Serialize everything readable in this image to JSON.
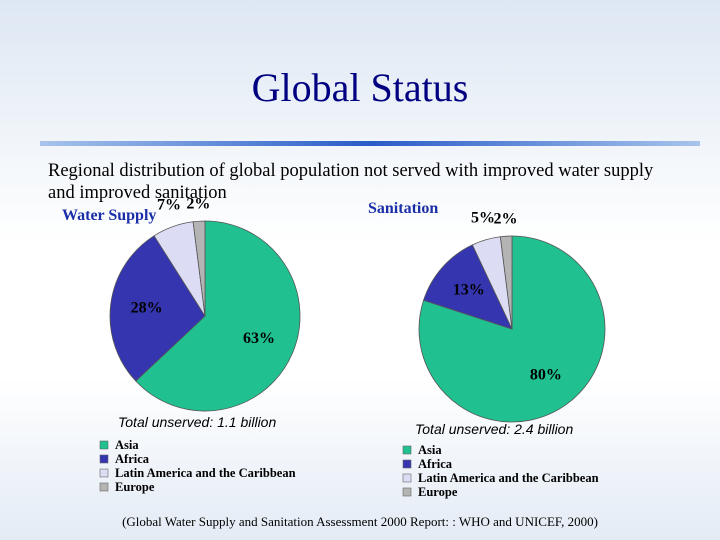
{
  "title": "Global Status",
  "subtitle": "Regional distribution of global population not served with improved water supply and improved sanitation",
  "source": "(Global Water Supply and Sanitation Assessment 2000 Report: : WHO and UNICEF, 2000)",
  "chart_data": [
    {
      "type": "pie",
      "title": "Water Supply",
      "note": "Total unserved: 1.1 billion",
      "categories": [
        "Asia",
        "Africa",
        "Latin America and the Caribbean",
        "Europe"
      ],
      "values": [
        63,
        28,
        7,
        2
      ],
      "value_labels": [
        "63%",
        "28%",
        "7%",
        "2%"
      ],
      "colors": [
        "#20c090",
        "#3535b0",
        "#dcdcf4",
        "#b4b4b4"
      ]
    },
    {
      "type": "pie",
      "title": "Sanitation",
      "note": "Total unserved: 2.4 billion",
      "categories": [
        "Asia",
        "Africa",
        "Latin America and the Caribbean",
        "Europe"
      ],
      "values": [
        80,
        13,
        5,
        2
      ],
      "value_labels": [
        "80%",
        "13%",
        "5%",
        "2%"
      ],
      "colors": [
        "#20c090",
        "#3535b0",
        "#dcdcf4",
        "#b4b4b4"
      ]
    }
  ]
}
